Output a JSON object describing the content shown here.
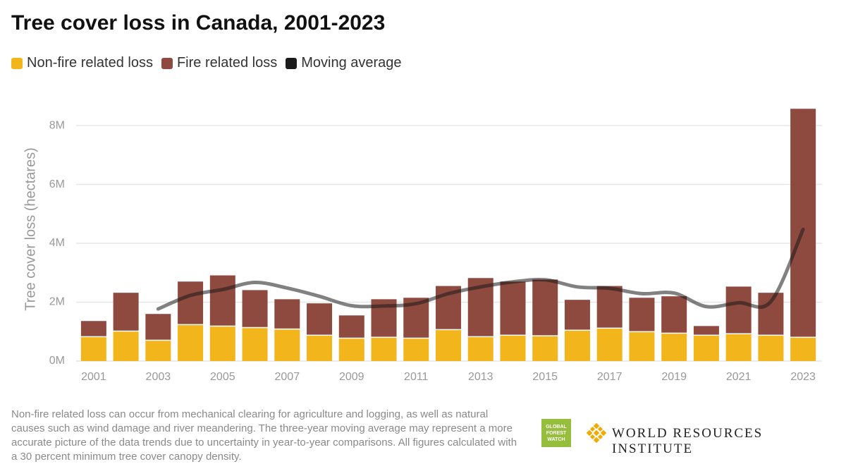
{
  "chart_data": {
    "type": "bar",
    "stacked": true,
    "title": "Tree cover loss in Canada, 2001-2023",
    "y_label": "Tree cover loss (hectares)",
    "categories": [
      "2001",
      null,
      "2003",
      null,
      "2005",
      null,
      "2007",
      null,
      "2009",
      null,
      "2011",
      null,
      "2013",
      null,
      "2015",
      null,
      "2017",
      null,
      "2019",
      null,
      "2021",
      null,
      "2023"
    ],
    "series": [
      {
        "name": "Non-fire related loss",
        "color": "#f2b51b",
        "type": "bar",
        "values": [
          810000,
          1000000,
          690000,
          1220000,
          1170000,
          1120000,
          1070000,
          860000,
          760000,
          790000,
          760000,
          1050000,
          810000,
          860000,
          840000,
          1030000,
          1100000,
          980000,
          930000,
          860000,
          910000,
          860000,
          790000
        ]
      },
      {
        "name": "Fire related loss",
        "color": "#8f4a3f",
        "type": "bar",
        "values": [
          550000,
          1320000,
          910000,
          1480000,
          1740000,
          1290000,
          1030000,
          1100000,
          790000,
          1310000,
          1390000,
          1500000,
          2010000,
          1840000,
          1930000,
          1050000,
          1450000,
          1170000,
          1270000,
          330000,
          1620000,
          1460000,
          7780000
        ]
      },
      {
        "name": "Moving average",
        "color": "#1a1a1a",
        "type": "line",
        "values": [
          null,
          null,
          1770000,
          2230000,
          2430000,
          2670000,
          2480000,
          2200000,
          1880000,
          1870000,
          1950000,
          2290000,
          2520000,
          2690000,
          2760000,
          2520000,
          2470000,
          2290000,
          2310000,
          1850000,
          1980000,
          2020000,
          4470000
        ]
      }
    ],
    "ylim": [
      0,
      8600000
    ],
    "yticks": [
      {
        "value": 0,
        "label": "0M"
      },
      {
        "value": 2000000,
        "label": "2M"
      },
      {
        "value": 4000000,
        "label": "4M"
      },
      {
        "value": 6000000,
        "label": "6M"
      },
      {
        "value": 8000000,
        "label": "8M"
      }
    ],
    "grid": true
  },
  "footer": {
    "note": "Non-fire related loss can occur from mechanical clearing for agriculture and logging, as well as natural causes such as wind damage and river meandering. The three-year moving average may represent a more accurate picture of the data trends due to uncertainty in year-to-year comparisons. All figures calculated with a 30 percent minimum tree cover canopy density.",
    "logo_gfw": "GLOBAL FOREST WATCH",
    "logo_wri": "WORLD RESOURCES INSTITUTE"
  }
}
